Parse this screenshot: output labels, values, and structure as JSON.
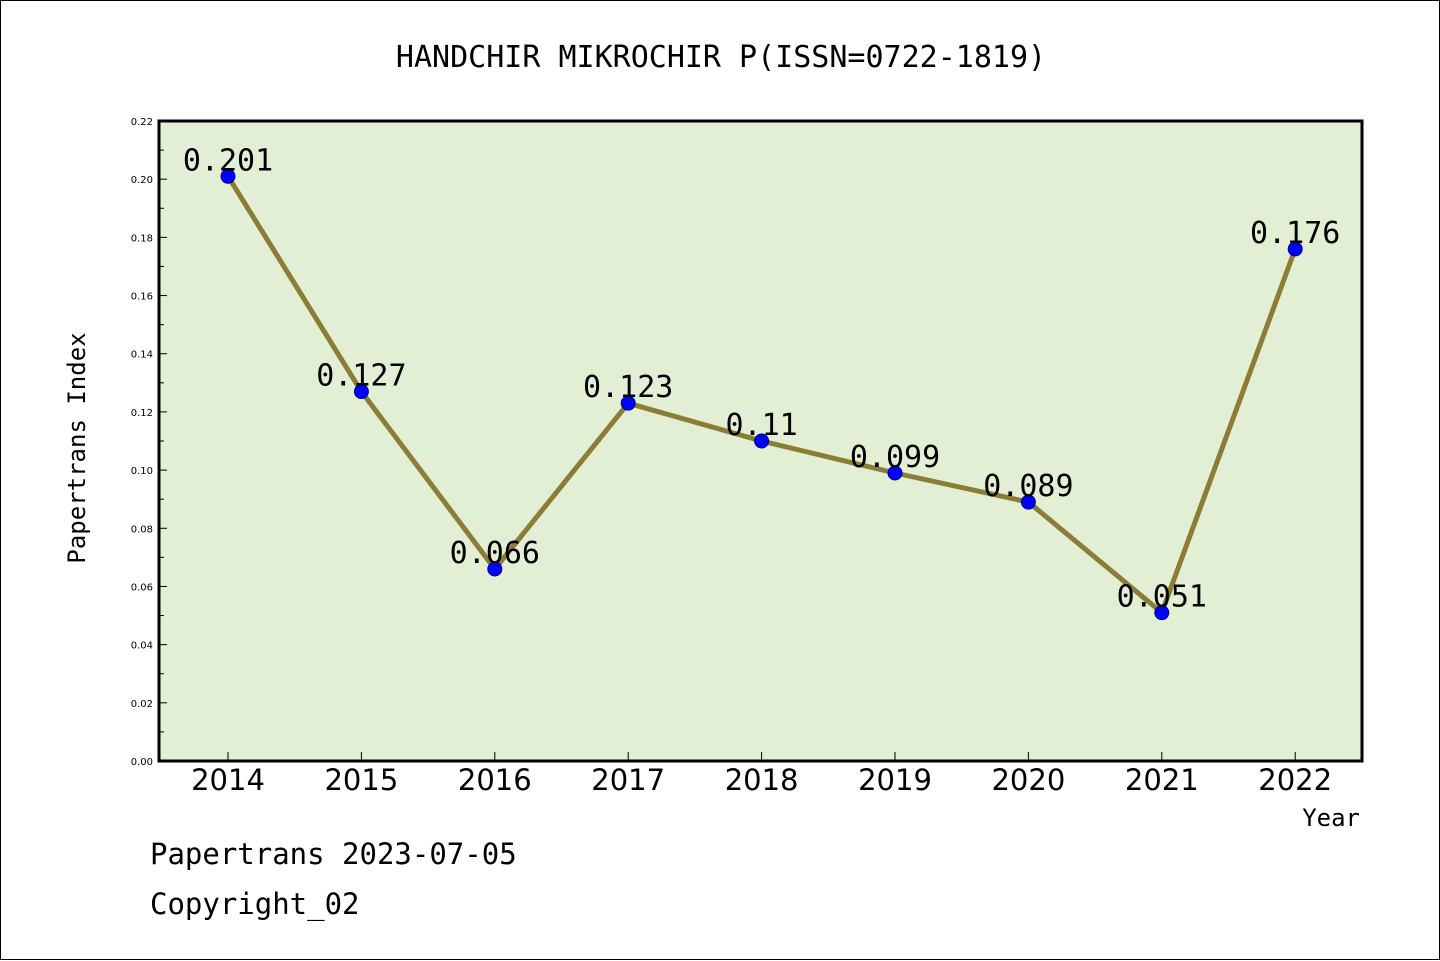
{
  "colors": {
    "plot_background": "#e2efd5",
    "line": "#8b7d35",
    "marker": "#0000ff",
    "axes": "#000000"
  },
  "footer": {
    "date_line": "Papertrans 2023-07-05",
    "copyright": "Copyright_02"
  },
  "chart_data": {
    "type": "line",
    "title": "HANDCHIR MIKROCHIR P(ISSN=0722-1819)",
    "xlabel": "Year",
    "ylabel": "Papertrans Index",
    "categories": [
      "2014",
      "2015",
      "2016",
      "2017",
      "2018",
      "2019",
      "2020",
      "2021",
      "2022"
    ],
    "series": [
      {
        "values": [
          0.201,
          0.127,
          0.066,
          0.123,
          0.11,
          0.099,
          0.089,
          0.051,
          0.176
        ],
        "data_labels": [
          "0.201",
          "0.127",
          "0.066",
          "0.123",
          "0.11",
          "0.099",
          "0.089",
          "0.051",
          "0.176"
        ]
      }
    ],
    "ylim": [
      0,
      0.22
    ],
    "yticks": [
      "0.00",
      "0.02",
      "0.04",
      "0.06",
      "0.08",
      "0.10",
      "0.12",
      "0.14",
      "0.16",
      "0.18",
      "0.20",
      "0.22"
    ],
    "grid": false,
    "legend": "none"
  }
}
